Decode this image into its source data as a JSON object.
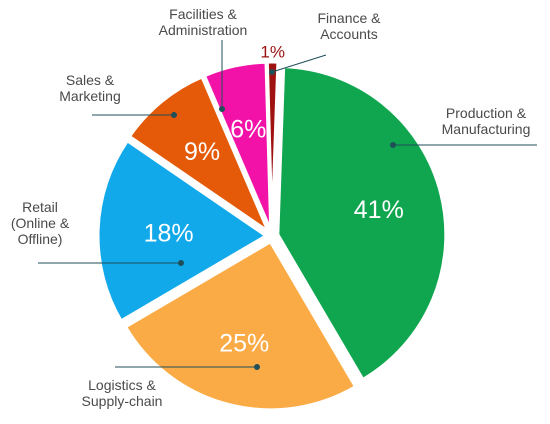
{
  "chart_data": {
    "type": "pie",
    "title": "",
    "slices": [
      {
        "label": [
          "Production &",
          "Manufacturing"
        ],
        "value": 41,
        "display": "41%",
        "color": "#10a64f"
      },
      {
        "label": [
          "Logistics &",
          "Supply-chain"
        ],
        "value": 25,
        "display": "25%",
        "color": "#fbab45"
      },
      {
        "label": [
          "Retail",
          "(Online &",
          "Offline)"
        ],
        "value": 18,
        "display": "18%",
        "color": "#12a9ea"
      },
      {
        "label": [
          "Sales &",
          "Marketing"
        ],
        "value": 9,
        "display": "9%",
        "color": "#e45a08"
      },
      {
        "label": [
          "Facilities &",
          "Administration"
        ],
        "value": 6,
        "display": "6%",
        "color": "#f312a8"
      },
      {
        "label": [
          "Finance &",
          "Accounts"
        ],
        "value": 1,
        "display": "1%",
        "color": "#a01212"
      }
    ],
    "legend": "none",
    "data_labels": "inside"
  }
}
